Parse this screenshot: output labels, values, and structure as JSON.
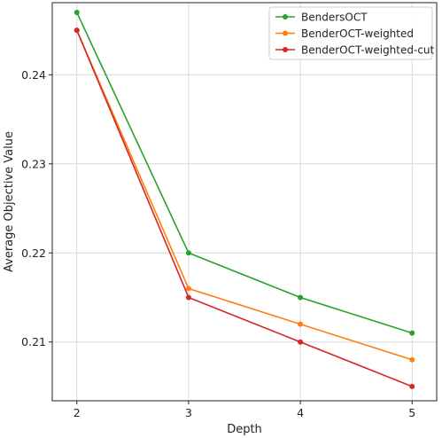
{
  "chart_data": {
    "type": "line",
    "xlabel": "Depth",
    "ylabel": "Average Objective Value",
    "x": [
      2,
      3,
      4,
      5
    ],
    "xticks": [
      "2",
      "3",
      "4",
      "5"
    ],
    "yticks": [
      "0.21",
      "0.22",
      "0.23",
      "0.24"
    ],
    "xlim": [
      1.78,
      5.22
    ],
    "ylim": [
      0.2034,
      0.2481
    ],
    "grid": true,
    "legend_position": "top-right",
    "series": [
      {
        "name": "BendersOCT",
        "color": "#2ca02c",
        "values": [
          0.247,
          0.22,
          0.215,
          0.211
        ]
      },
      {
        "name": "BenderOCT-weighted",
        "color": "#ff7f0e",
        "values": [
          0.245,
          0.216,
          0.212,
          0.208
        ]
      },
      {
        "name": "BenderOCT-weighted-cut",
        "color": "#d62728",
        "values": [
          0.245,
          0.215,
          0.21,
          0.205
        ]
      }
    ]
  }
}
